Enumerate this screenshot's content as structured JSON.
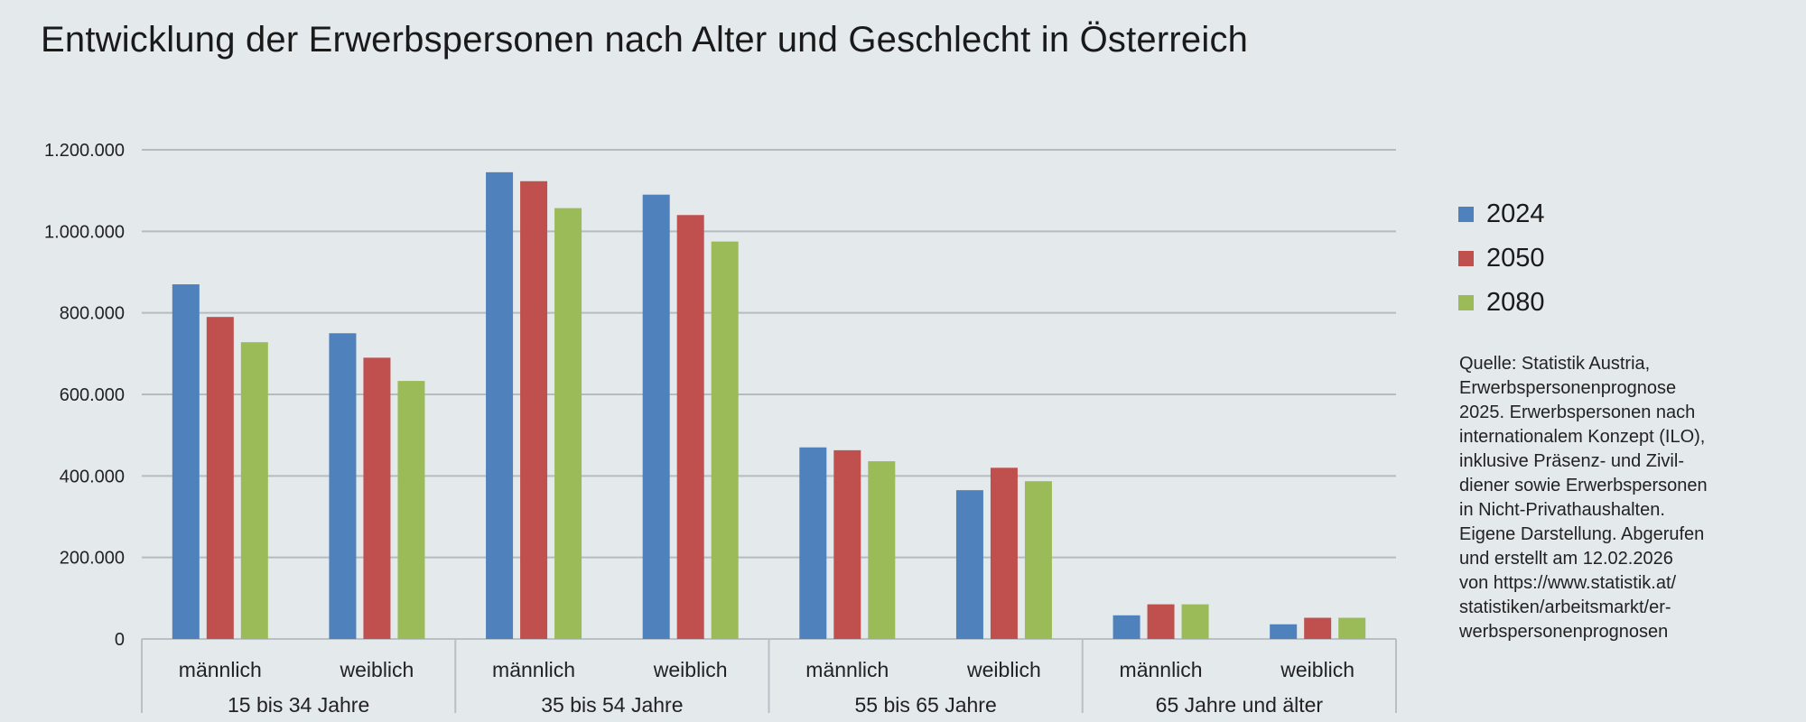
{
  "title": "Entwicklung der Erwerbspersonen nach Alter und Geschlecht in Österreich",
  "source": "Quelle: Statistik Austria,\nErwerbspersonenprognose\n2025. Erwerbspersonen nach\ninternationalem Konzept (ILO),\ninklusive Präsenz- und Zivil-\ndiener sowie Erwerbspersonen\nin Nicht-Privathaushalten.\nEigene Darstellung. Abgerufen\nund erstellt am 12.02.2026\nvon https://www.statistik.at/\nstatistiken/arbeitsmarkt/er-\nwerbspersonenprognosen",
  "chart_data": {
    "type": "bar",
    "title": "Entwicklung der Erwerbspersonen nach Alter und Geschlecht in Österreich",
    "groups": [
      "15 bis 34 Jahre",
      "35 bis 54 Jahre",
      "55 bis 65 Jahre",
      "65 Jahre und älter"
    ],
    "subcategories": [
      "männlich",
      "weiblich"
    ],
    "categories": [
      "15 bis 34 Jahre männlich",
      "15 bis 34 Jahre weiblich",
      "35 bis 54 Jahre männlich",
      "35 bis 54 Jahre weiblich",
      "55 bis 65 Jahre männlich",
      "55 bis 65 Jahre weiblich",
      "65 Jahre und älter männlich",
      "65 Jahre und älter weiblich"
    ],
    "series": [
      {
        "name": "2024",
        "color": "#4f81bd",
        "values": [
          870000,
          750000,
          1145000,
          1090000,
          470000,
          365000,
          58000,
          36000
        ]
      },
      {
        "name": "2050",
        "color": "#c0504d",
        "values": [
          790000,
          690000,
          1123000,
          1040000,
          463000,
          420000,
          85000,
          52000
        ]
      },
      {
        "name": "2080",
        "color": "#9bbb59",
        "values": [
          728000,
          633000,
          1057000,
          975000,
          436000,
          387000,
          85000,
          52000
        ]
      }
    ],
    "ylim": [
      0,
      1200000
    ],
    "yticks": [
      0,
      200000,
      400000,
      600000,
      800000,
      1000000,
      1200000
    ],
    "ytick_labels": [
      "0",
      "200.000",
      "400.000",
      "600.000",
      "800.000",
      "1.000.000",
      "1.200.000"
    ],
    "grid": true,
    "legend_position": "right",
    "xlabel": "",
    "ylabel": ""
  }
}
